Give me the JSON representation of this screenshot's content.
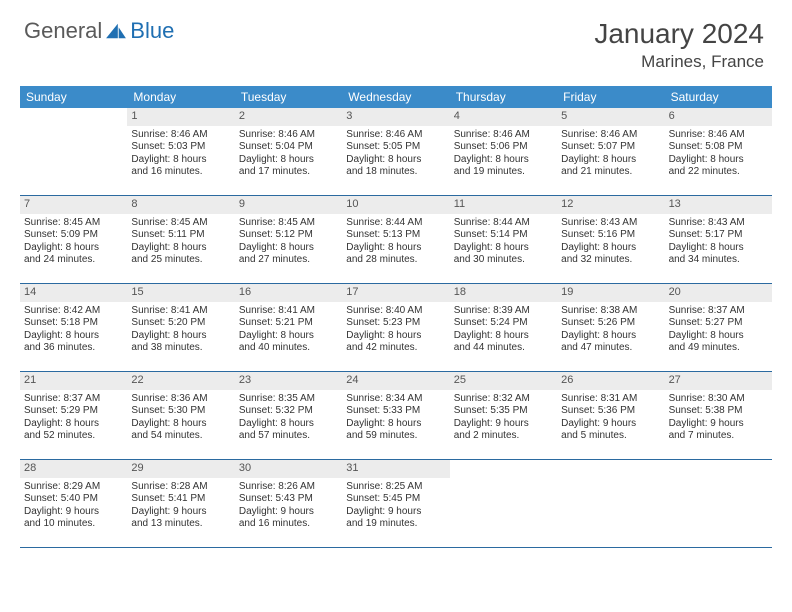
{
  "brand": {
    "part1": "General",
    "part2": "Blue"
  },
  "title": "January 2024",
  "location": "Marines, France",
  "colors": {
    "header_bg": "#3b8bc9",
    "header_text": "#ffffff",
    "daynum_bg": "#ececec",
    "border": "#2b6aa0",
    "text": "#333333",
    "brand_gray": "#5a5a5a",
    "brand_blue": "#1f6fb2"
  },
  "weekdays": [
    "Sunday",
    "Monday",
    "Tuesday",
    "Wednesday",
    "Thursday",
    "Friday",
    "Saturday"
  ],
  "rows": [
    [
      {
        "day": "",
        "empty": true
      },
      {
        "day": "1",
        "sunrise": "Sunrise: 8:46 AM",
        "sunset": "Sunset: 5:03 PM",
        "dl1": "Daylight: 8 hours",
        "dl2": "and 16 minutes."
      },
      {
        "day": "2",
        "sunrise": "Sunrise: 8:46 AM",
        "sunset": "Sunset: 5:04 PM",
        "dl1": "Daylight: 8 hours",
        "dl2": "and 17 minutes."
      },
      {
        "day": "3",
        "sunrise": "Sunrise: 8:46 AM",
        "sunset": "Sunset: 5:05 PM",
        "dl1": "Daylight: 8 hours",
        "dl2": "and 18 minutes."
      },
      {
        "day": "4",
        "sunrise": "Sunrise: 8:46 AM",
        "sunset": "Sunset: 5:06 PM",
        "dl1": "Daylight: 8 hours",
        "dl2": "and 19 minutes."
      },
      {
        "day": "5",
        "sunrise": "Sunrise: 8:46 AM",
        "sunset": "Sunset: 5:07 PM",
        "dl1": "Daylight: 8 hours",
        "dl2": "and 21 minutes."
      },
      {
        "day": "6",
        "sunrise": "Sunrise: 8:46 AM",
        "sunset": "Sunset: 5:08 PM",
        "dl1": "Daylight: 8 hours",
        "dl2": "and 22 minutes."
      }
    ],
    [
      {
        "day": "7",
        "sunrise": "Sunrise: 8:45 AM",
        "sunset": "Sunset: 5:09 PM",
        "dl1": "Daylight: 8 hours",
        "dl2": "and 24 minutes."
      },
      {
        "day": "8",
        "sunrise": "Sunrise: 8:45 AM",
        "sunset": "Sunset: 5:11 PM",
        "dl1": "Daylight: 8 hours",
        "dl2": "and 25 minutes."
      },
      {
        "day": "9",
        "sunrise": "Sunrise: 8:45 AM",
        "sunset": "Sunset: 5:12 PM",
        "dl1": "Daylight: 8 hours",
        "dl2": "and 27 minutes."
      },
      {
        "day": "10",
        "sunrise": "Sunrise: 8:44 AM",
        "sunset": "Sunset: 5:13 PM",
        "dl1": "Daylight: 8 hours",
        "dl2": "and 28 minutes."
      },
      {
        "day": "11",
        "sunrise": "Sunrise: 8:44 AM",
        "sunset": "Sunset: 5:14 PM",
        "dl1": "Daylight: 8 hours",
        "dl2": "and 30 minutes."
      },
      {
        "day": "12",
        "sunrise": "Sunrise: 8:43 AM",
        "sunset": "Sunset: 5:16 PM",
        "dl1": "Daylight: 8 hours",
        "dl2": "and 32 minutes."
      },
      {
        "day": "13",
        "sunrise": "Sunrise: 8:43 AM",
        "sunset": "Sunset: 5:17 PM",
        "dl1": "Daylight: 8 hours",
        "dl2": "and 34 minutes."
      }
    ],
    [
      {
        "day": "14",
        "sunrise": "Sunrise: 8:42 AM",
        "sunset": "Sunset: 5:18 PM",
        "dl1": "Daylight: 8 hours",
        "dl2": "and 36 minutes."
      },
      {
        "day": "15",
        "sunrise": "Sunrise: 8:41 AM",
        "sunset": "Sunset: 5:20 PM",
        "dl1": "Daylight: 8 hours",
        "dl2": "and 38 minutes."
      },
      {
        "day": "16",
        "sunrise": "Sunrise: 8:41 AM",
        "sunset": "Sunset: 5:21 PM",
        "dl1": "Daylight: 8 hours",
        "dl2": "and 40 minutes."
      },
      {
        "day": "17",
        "sunrise": "Sunrise: 8:40 AM",
        "sunset": "Sunset: 5:23 PM",
        "dl1": "Daylight: 8 hours",
        "dl2": "and 42 minutes."
      },
      {
        "day": "18",
        "sunrise": "Sunrise: 8:39 AM",
        "sunset": "Sunset: 5:24 PM",
        "dl1": "Daylight: 8 hours",
        "dl2": "and 44 minutes."
      },
      {
        "day": "19",
        "sunrise": "Sunrise: 8:38 AM",
        "sunset": "Sunset: 5:26 PM",
        "dl1": "Daylight: 8 hours",
        "dl2": "and 47 minutes."
      },
      {
        "day": "20",
        "sunrise": "Sunrise: 8:37 AM",
        "sunset": "Sunset: 5:27 PM",
        "dl1": "Daylight: 8 hours",
        "dl2": "and 49 minutes."
      }
    ],
    [
      {
        "day": "21",
        "sunrise": "Sunrise: 8:37 AM",
        "sunset": "Sunset: 5:29 PM",
        "dl1": "Daylight: 8 hours",
        "dl2": "and 52 minutes."
      },
      {
        "day": "22",
        "sunrise": "Sunrise: 8:36 AM",
        "sunset": "Sunset: 5:30 PM",
        "dl1": "Daylight: 8 hours",
        "dl2": "and 54 minutes."
      },
      {
        "day": "23",
        "sunrise": "Sunrise: 8:35 AM",
        "sunset": "Sunset: 5:32 PM",
        "dl1": "Daylight: 8 hours",
        "dl2": "and 57 minutes."
      },
      {
        "day": "24",
        "sunrise": "Sunrise: 8:34 AM",
        "sunset": "Sunset: 5:33 PM",
        "dl1": "Daylight: 8 hours",
        "dl2": "and 59 minutes."
      },
      {
        "day": "25",
        "sunrise": "Sunrise: 8:32 AM",
        "sunset": "Sunset: 5:35 PM",
        "dl1": "Daylight: 9 hours",
        "dl2": "and 2 minutes."
      },
      {
        "day": "26",
        "sunrise": "Sunrise: 8:31 AM",
        "sunset": "Sunset: 5:36 PM",
        "dl1": "Daylight: 9 hours",
        "dl2": "and 5 minutes."
      },
      {
        "day": "27",
        "sunrise": "Sunrise: 8:30 AM",
        "sunset": "Sunset: 5:38 PM",
        "dl1": "Daylight: 9 hours",
        "dl2": "and 7 minutes."
      }
    ],
    [
      {
        "day": "28",
        "sunrise": "Sunrise: 8:29 AM",
        "sunset": "Sunset: 5:40 PM",
        "dl1": "Daylight: 9 hours",
        "dl2": "and 10 minutes."
      },
      {
        "day": "29",
        "sunrise": "Sunrise: 8:28 AM",
        "sunset": "Sunset: 5:41 PM",
        "dl1": "Daylight: 9 hours",
        "dl2": "and 13 minutes."
      },
      {
        "day": "30",
        "sunrise": "Sunrise: 8:26 AM",
        "sunset": "Sunset: 5:43 PM",
        "dl1": "Daylight: 9 hours",
        "dl2": "and 16 minutes."
      },
      {
        "day": "31",
        "sunrise": "Sunrise: 8:25 AM",
        "sunset": "Sunset: 5:45 PM",
        "dl1": "Daylight: 9 hours",
        "dl2": "and 19 minutes."
      },
      {
        "day": "",
        "empty": true
      },
      {
        "day": "",
        "empty": true
      },
      {
        "day": "",
        "empty": true
      }
    ]
  ]
}
